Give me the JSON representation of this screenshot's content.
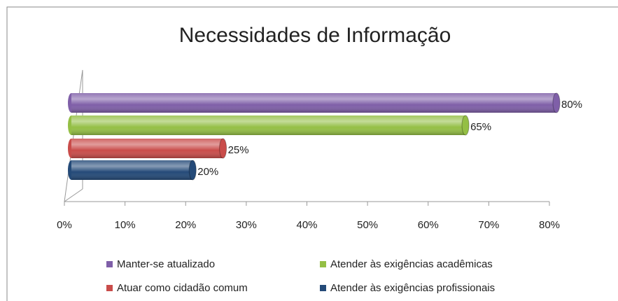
{
  "chart_data": {
    "type": "bar",
    "orientation": "horizontal",
    "title": "Necessidades de Informação",
    "categories": [
      null
    ],
    "series": [
      {
        "name": "Manter-se atualizado",
        "color": "#7f5fa8",
        "values": [
          80
        ],
        "value_labels": [
          "80%"
        ]
      },
      {
        "name": "Atender às exigências acadêmicas",
        "color": "#94bf45",
        "values": [
          65
        ],
        "value_labels": [
          "65%"
        ]
      },
      {
        "name": "Atuar como cidadão comum",
        "color": "#c94c4a",
        "values": [
          25
        ],
        "value_labels": [
          "25%"
        ]
      },
      {
        "name": "Atender às exigências profissionais",
        "color": "#244a78",
        "values": [
          20
        ],
        "value_labels": [
          "20%"
        ]
      }
    ],
    "xlim": [
      0,
      80
    ],
    "xticks": [
      {
        "value": 0,
        "label": "0%"
      },
      {
        "value": 10,
        "label": "10%"
      },
      {
        "value": 20,
        "label": "20%"
      },
      {
        "value": 30,
        "label": "30%"
      },
      {
        "value": 40,
        "label": "40%"
      },
      {
        "value": 50,
        "label": "50%"
      },
      {
        "value": 60,
        "label": "60%"
      },
      {
        "value": 70,
        "label": "70%"
      },
      {
        "value": 80,
        "label": "80%"
      }
    ],
    "legend": "bottom"
  }
}
